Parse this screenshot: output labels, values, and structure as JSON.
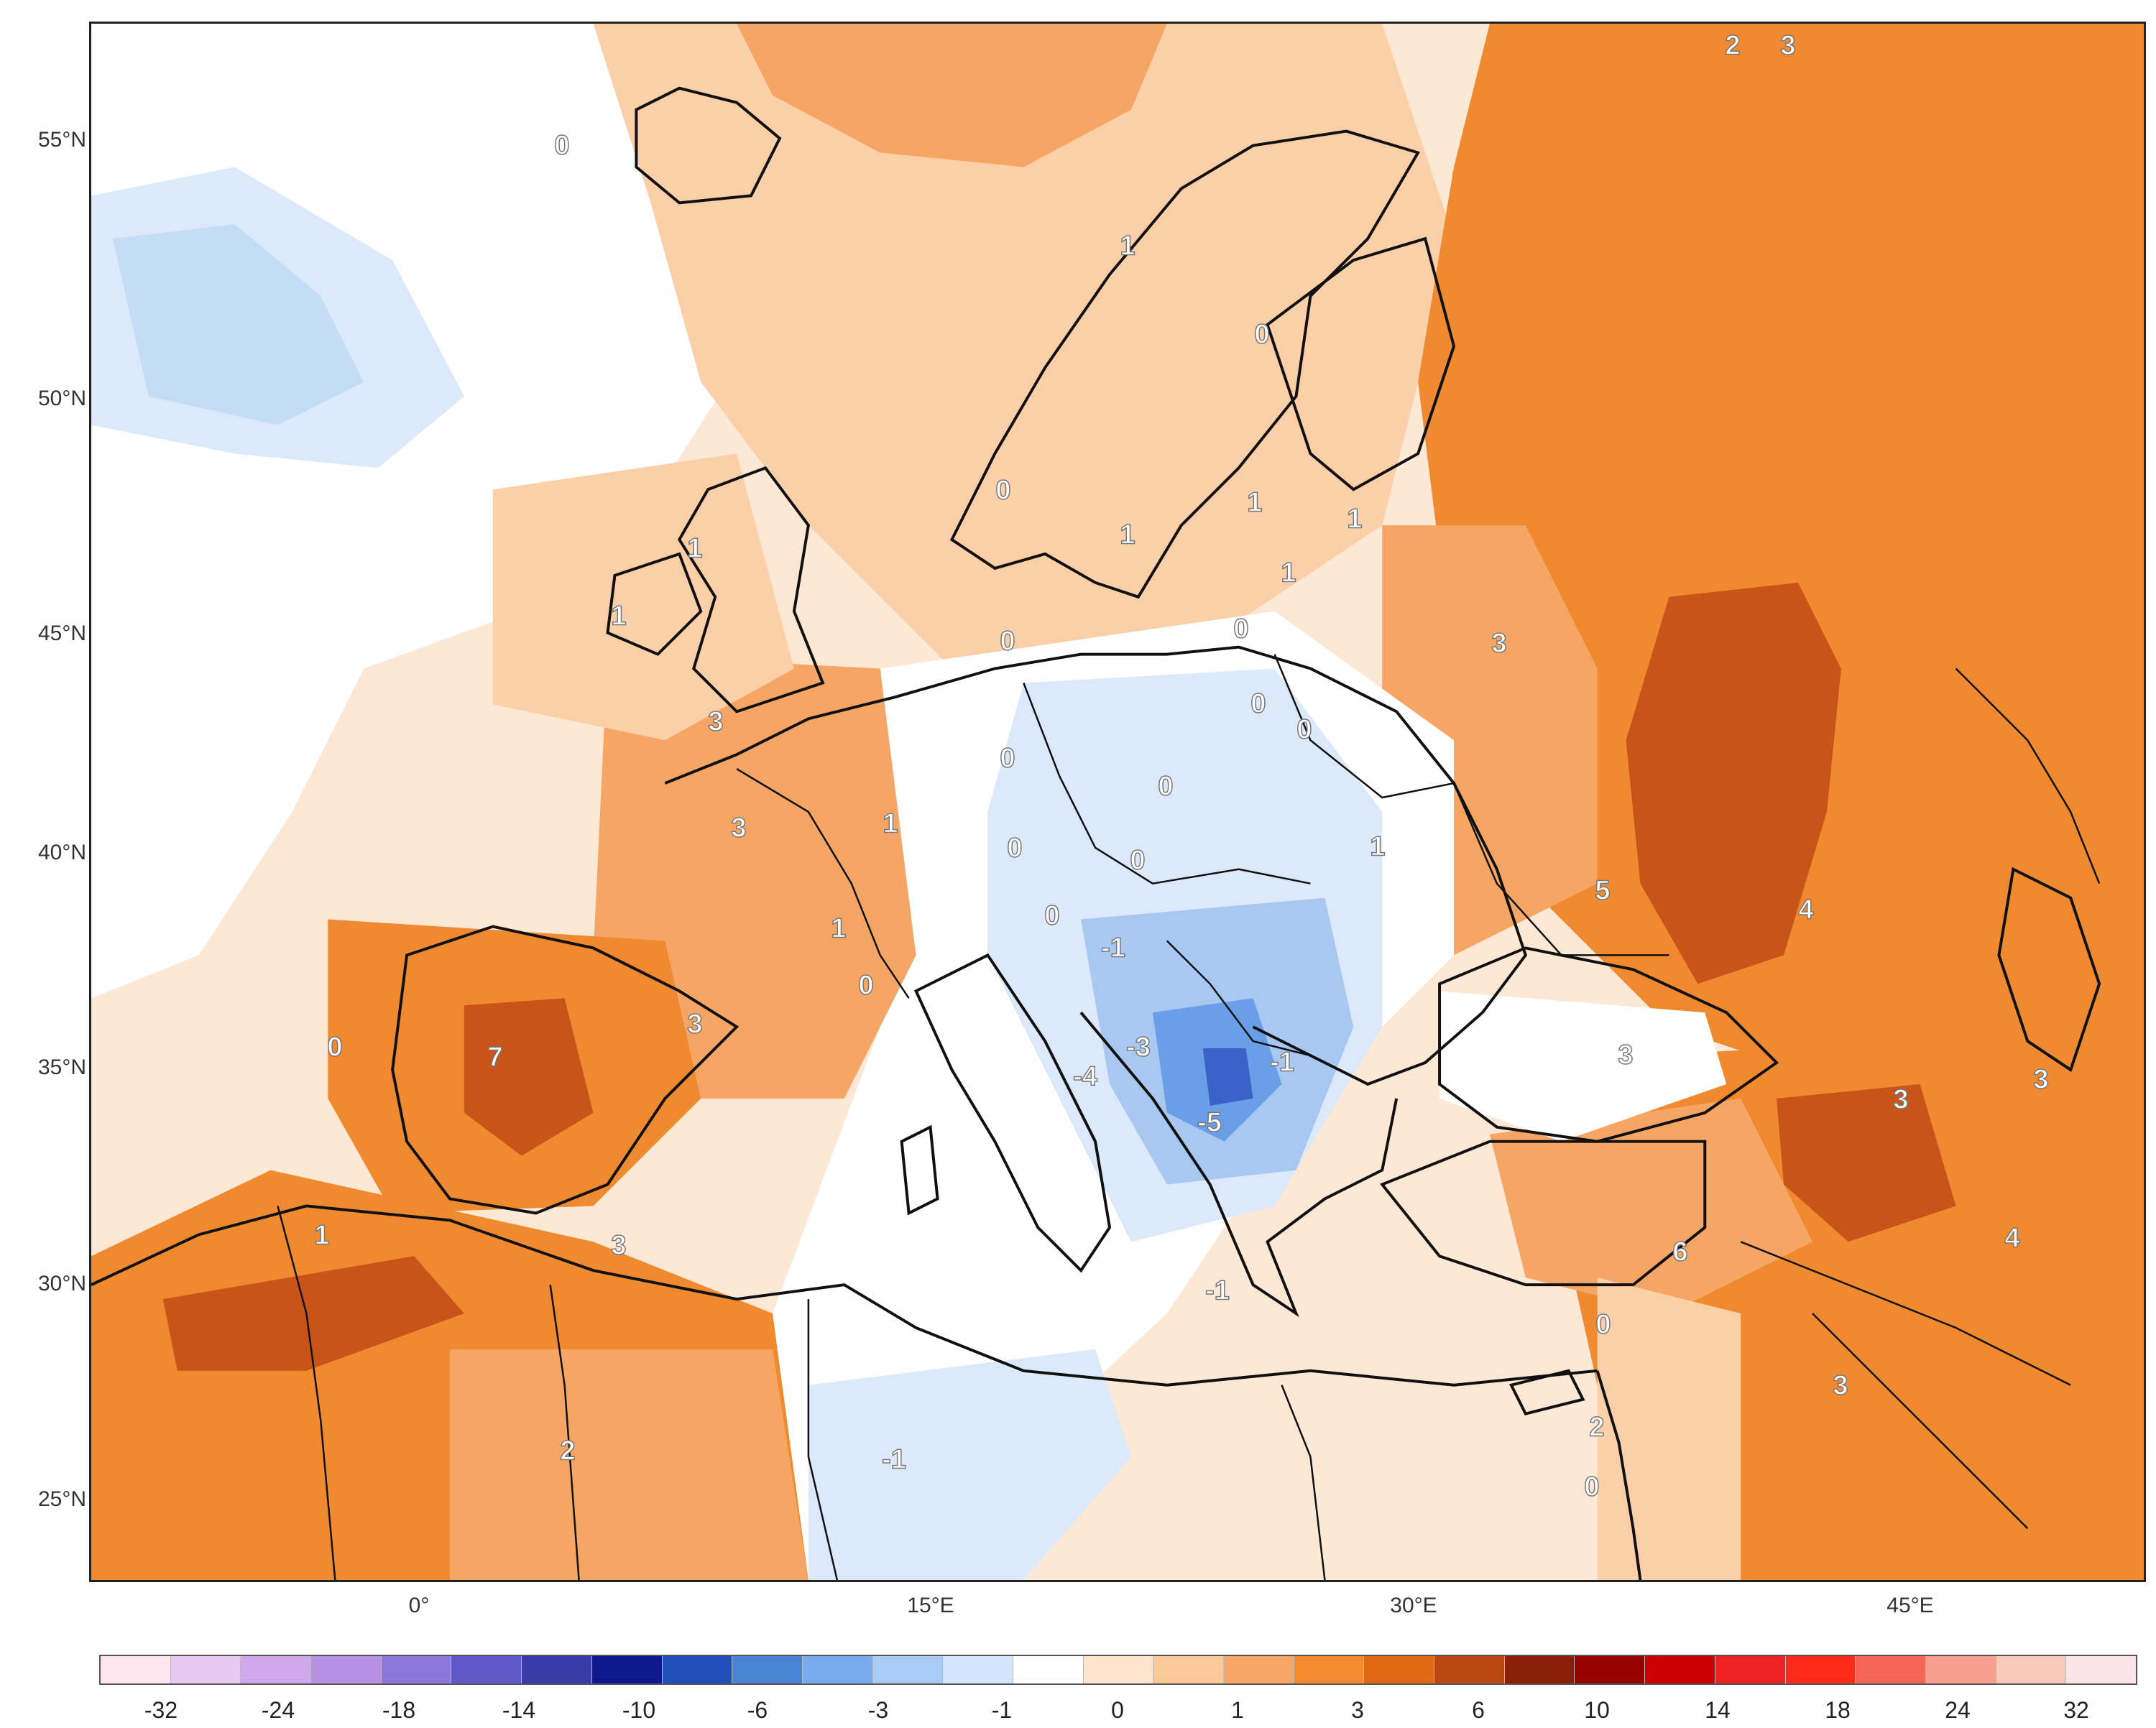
{
  "map": {
    "type": "anomaly-contour-map",
    "lat_labels": [
      "55°N",
      "50°N",
      "45°N",
      "40°N",
      "35°N",
      "30°N",
      "25°N"
    ],
    "lon_labels": [
      "0°",
      "15°E",
      "30°E",
      "45°E"
    ],
    "contour_value_labels": [
      "0",
      "1",
      "1",
      "1",
      "1",
      "1",
      "1",
      "1",
      "1",
      "1",
      "1",
      "3",
      "3",
      "3",
      "3",
      "3",
      "3",
      "3",
      "3",
      "3",
      "3",
      "0",
      "0",
      "0",
      "0",
      "0",
      "0",
      "0",
      "0",
      "0",
      "0",
      "0",
      "0",
      "0",
      "-1",
      "-1",
      "-3",
      "-4",
      "-5",
      "-1",
      "7",
      "5",
      "4",
      "6",
      "4",
      "2",
      "2",
      "2",
      "0",
      "-1",
      "0",
      "1"
    ]
  },
  "legend": {
    "tick_labels": [
      "-32",
      "-24",
      "-18",
      "-14",
      "-10",
      "-6",
      "-3",
      "-1",
      "0",
      "1",
      "3",
      "6",
      "10",
      "14",
      "18",
      "24",
      "32"
    ],
    "swatch_colors": [
      "#fde6ee",
      "#e8c8f0",
      "#d2a8ec",
      "#b890e6",
      "#8c78da",
      "#5f58c8",
      "#3a3aa8",
      "#10188e",
      "#1f4fb8",
      "#4a82d6",
      "#78acee",
      "#a8ccf6",
      "#d2e6fb",
      "#ffffff",
      "#fde4cc",
      "#fbc898",
      "#f7a868",
      "#f48a2e",
      "#e06a14",
      "#b84810",
      "#8a1e06",
      "#9a0000",
      "#cc0000",
      "#ee2222",
      "#ff2a1a",
      "#f56656",
      "#f7a090",
      "#f9c8bc",
      "#fde4ea"
    ]
  },
  "colors": {
    "ocean_pale": "#fdeadc",
    "light_orange": "#fbcfa8",
    "mid_orange": "#f6a664",
    "orange": "#f08a30",
    "dark_orange": "#c8541a",
    "white": "#ffffff",
    "pale_blue": "#d8e8fa",
    "light_blue": "#a8c8f2",
    "mid_blue": "#6a9ee6",
    "dark_blue": "#3a62c8",
    "coast_line": "#111111"
  }
}
